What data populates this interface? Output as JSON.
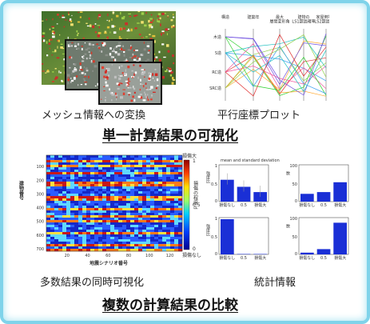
{
  "top": {
    "left_caption": "メッシュ情報への変換",
    "right_caption": "平行座標プロット",
    "heading": "単一計算結果の可視化",
    "parallel_axes": [
      "構造",
      "建築年",
      "最大\n層間変形角",
      "建物の\nLS1超過確率",
      "家屋倒壊の\nLS2超過確率"
    ],
    "parallel_rows": [
      "木造",
      "S造",
      "RC造",
      "SRC造"
    ]
  },
  "bottom": {
    "left_caption": "多数結果の同時可視化",
    "right_caption": "統計情報",
    "heading": "複数の計算結果の比較",
    "heatmap": {
      "ylabel": "建物番号",
      "xlabel": "地震シナリオ番号",
      "yticks": [
        "100",
        "200",
        "300",
        "400",
        "500",
        "600",
        "700"
      ],
      "xticks": [
        "20",
        "40",
        "60",
        "80",
        "100",
        "120"
      ],
      "colorbar_top": "損傷大",
      "colorbar_bottom": "損傷なし",
      "colorbar_label": "損傷の程度 d",
      "colorbar_ticks": [
        "1",
        "0.5",
        "0"
      ]
    },
    "stats": {
      "title": "mean and standard deviation",
      "categories": [
        "損傷なし",
        "0.5",
        "損傷大"
      ],
      "ylabel_left": "強度比",
      "ylabel_right": "数"
    }
  },
  "colors": {
    "frame": "#7fd3ea",
    "bar": "#1a2fd6",
    "heat_low": "#1f3bff",
    "heat_high": "#d01010"
  },
  "chart_data": [
    {
      "type": "bar",
      "categories": [
        "損傷なし",
        "0.5",
        "損傷大"
      ],
      "values": [
        0.62,
        0.42,
        0.27
      ]
    },
    {
      "type": "bar",
      "categories": [
        "損傷なし",
        "0.5",
        "損傷大"
      ],
      "values": [
        22,
        27,
        55
      ]
    },
    {
      "type": "bar",
      "categories": [
        "損傷なし",
        "0.5",
        "損傷大"
      ],
      "values": [
        1.0,
        0.0,
        0.0
      ]
    },
    {
      "type": "bar",
      "categories": [
        "損傷なし",
        "0.5",
        "損傷大"
      ],
      "values": [
        5,
        15,
        90
      ]
    }
  ]
}
